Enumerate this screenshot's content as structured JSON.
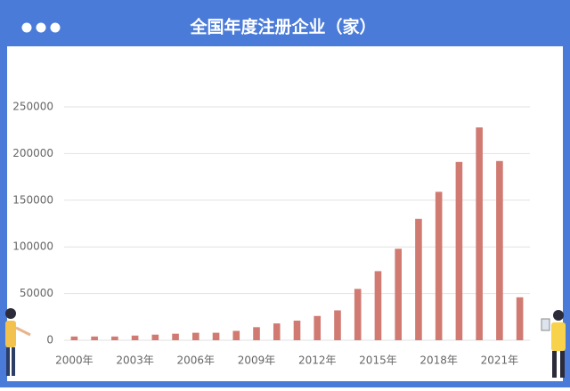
{
  "chart_data": {
    "type": "bar",
    "title": "全国年度注册企业（家）",
    "categories": [
      "2000年",
      null,
      null,
      "2003年",
      null,
      null,
      "2006年",
      null,
      null,
      "2009年",
      null,
      null,
      "2012年",
      null,
      null,
      "2015年",
      null,
      null,
      "2018年",
      null,
      null,
      "2021年",
      null
    ],
    "values": [
      4000,
      4000,
      4000,
      5000,
      6000,
      7000,
      8000,
      8000,
      10000,
      14000,
      18000,
      21000,
      26000,
      32000,
      55000,
      74000,
      98000,
      130000,
      159000,
      191000,
      228000,
      192000,
      46000
    ],
    "color": "#d07a72",
    "ylim": [
      0,
      250000
    ],
    "yticks": [
      0,
      50000,
      100000,
      150000,
      200000,
      250000
    ],
    "grid": true
  }
}
